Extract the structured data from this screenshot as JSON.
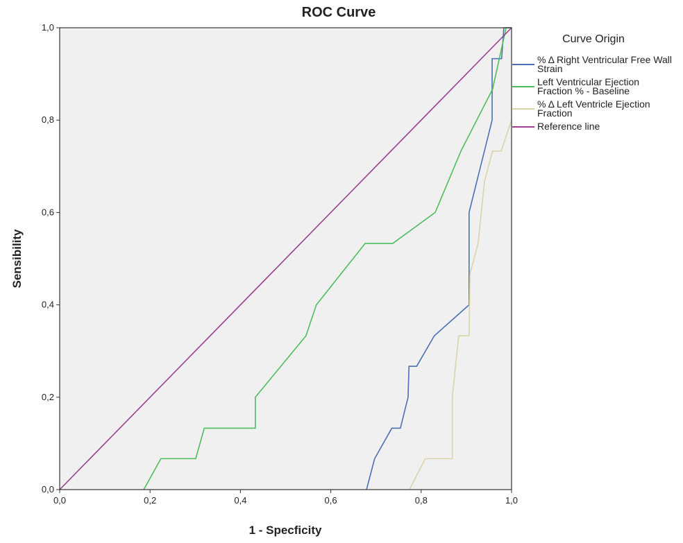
{
  "chart_data": {
    "type": "line",
    "title": "ROC Curve",
    "x_label": "1 - Specficity",
    "y_label": "Sensibility",
    "legend_title": "Curve Origin",
    "legend": "right",
    "xlim": [
      0,
      1
    ],
    "ylim": [
      0,
      1
    ],
    "xticks": [
      {
        "value": 0,
        "label": "0,0"
      },
      {
        "value": 0.2,
        "label": "0,2"
      },
      {
        "value": 0.4,
        "label": "0,4"
      },
      {
        "value": 0.6,
        "label": "0,6"
      },
      {
        "value": 0.8,
        "label": "0,8"
      },
      {
        "value": 1,
        "label": "1,0"
      }
    ],
    "yticks": [
      {
        "value": 0,
        "label": "0,0"
      },
      {
        "value": 0.2,
        "label": "0,2"
      },
      {
        "value": 0.4,
        "label": "0,4"
      },
      {
        "value": 0.6,
        "label": "0,6"
      },
      {
        "value": 0.8,
        "label": "0,8"
      },
      {
        "value": 1,
        "label": "1,0"
      }
    ],
    "series": [
      {
        "name": "% Δ Right Ventricular Free Wall Strain",
        "color": "#4a6fb5",
        "x": [
          0.679,
          0.697,
          0.735,
          0.754,
          0.771,
          0.773,
          0.79,
          0.829,
          0.906,
          0.906,
          0.957,
          0.957,
          0.978,
          0.983,
          1
        ],
        "values": [
          0,
          0.067,
          0.133,
          0.133,
          0.2,
          0.267,
          0.267,
          0.333,
          0.4,
          0.6,
          0.8,
          0.933,
          0.933,
          1,
          1
        ]
      },
      {
        "name": "Left Ventricular Ejection Fraction % - Baseline",
        "color": "#4dbd5c",
        "x": [
          0.186,
          0.224,
          0.301,
          0.32,
          0.433,
          0.433,
          0.545,
          0.568,
          0.676,
          0.737,
          0.831,
          0.888,
          0.958,
          0.988,
          1
        ],
        "values": [
          0,
          0.067,
          0.067,
          0.133,
          0.133,
          0.2,
          0.333,
          0.4,
          0.533,
          0.533,
          0.6,
          0.733,
          0.867,
          1,
          1
        ]
      },
      {
        "name": "% Δ Left Ventricle Ejection Fraction",
        "color": "#d9d4a8",
        "x": [
          0.774,
          0.809,
          0.869,
          0.869,
          0.883,
          0.906,
          0.908,
          0.926,
          0.94,
          0.958,
          0.977,
          1
        ],
        "values": [
          0,
          0.067,
          0.067,
          0.2,
          0.333,
          0.333,
          0.467,
          0.533,
          0.667,
          0.733,
          0.733,
          0.8
        ]
      },
      {
        "name": "Reference line",
        "color": "#9a3f8f",
        "x": [
          0,
          1
        ],
        "values": [
          0,
          1
        ]
      }
    ]
  }
}
